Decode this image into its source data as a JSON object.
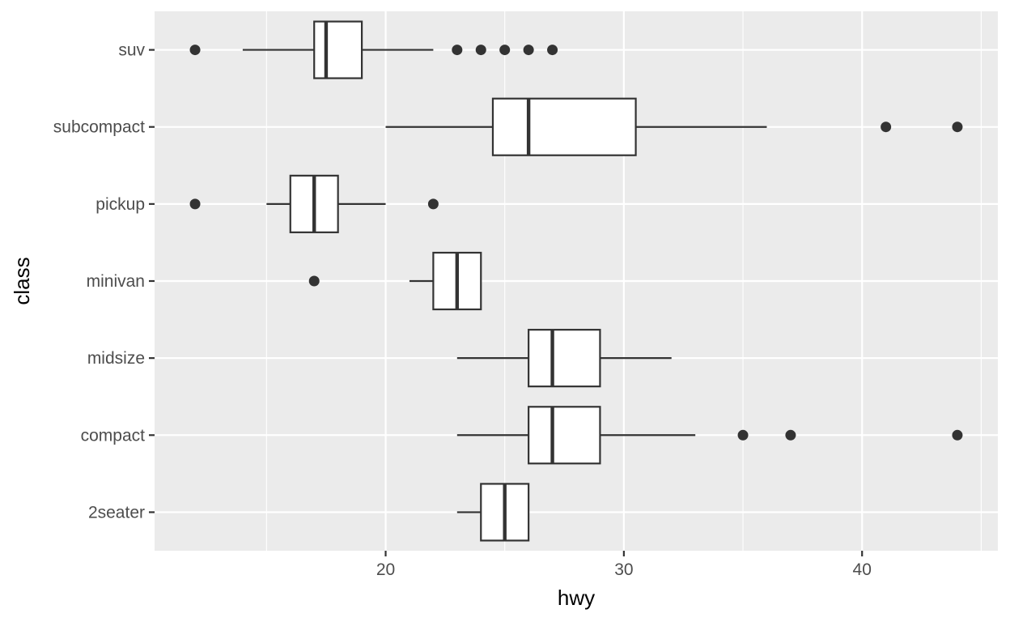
{
  "chart_data": {
    "type": "boxplot",
    "orientation": "horizontal",
    "xlabel": "hwy",
    "ylabel": "class",
    "xlim": [
      10.3,
      45.7
    ],
    "x_ticks": [
      20,
      30,
      40
    ],
    "x_tick_labels": [
      "20",
      "30",
      "40"
    ],
    "grid": true,
    "categories": [
      "2seater",
      "compact",
      "midsize",
      "minivan",
      "pickup",
      "subcompact",
      "suv"
    ],
    "boxes": [
      {
        "category": "2seater",
        "whisker_low": 23,
        "q1": 24,
        "median": 25,
        "q3": 26,
        "whisker_high": 26,
        "outliers": []
      },
      {
        "category": "compact",
        "whisker_low": 23,
        "q1": 26,
        "median": 27,
        "q3": 29,
        "whisker_high": 33,
        "outliers": [
          35,
          37,
          44
        ]
      },
      {
        "category": "midsize",
        "whisker_low": 23,
        "q1": 26,
        "median": 27,
        "q3": 29,
        "whisker_high": 32,
        "outliers": []
      },
      {
        "category": "minivan",
        "whisker_low": 21,
        "q1": 22,
        "median": 23,
        "q3": 24,
        "whisker_high": 24,
        "outliers": [
          17
        ]
      },
      {
        "category": "pickup",
        "whisker_low": 15,
        "q1": 16,
        "median": 17,
        "q3": 18,
        "whisker_high": 20,
        "outliers": [
          12,
          22
        ]
      },
      {
        "category": "subcompact",
        "whisker_low": 20,
        "q1": 24.5,
        "median": 26,
        "q3": 30.5,
        "whisker_high": 36,
        "outliers": [
          41,
          44
        ]
      },
      {
        "category": "suv",
        "whisker_low": 14,
        "q1": 17,
        "median": 17.5,
        "q3": 19,
        "whisker_high": 22,
        "outliers": [
          12,
          23,
          24,
          25,
          26,
          27
        ]
      }
    ],
    "colors": {
      "panel_background": "#ebebeb",
      "grid_major": "#ffffff",
      "box_fill": "#ffffff",
      "box_stroke": "#333333",
      "tick_mark": "#333333",
      "tick_label": "#4d4d4d",
      "axis_title": "#000000"
    }
  }
}
